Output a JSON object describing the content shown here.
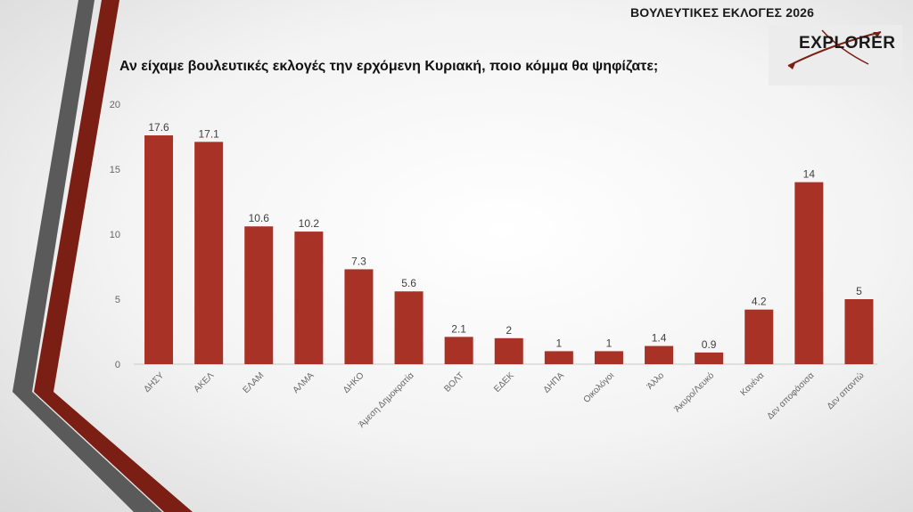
{
  "header": {
    "title": "ΒΟΥΛΕΥΤΙΚΕΣ ΕΚΛΟΓΕΣ 2026",
    "logo_text": "EXPLORER"
  },
  "colors": {
    "bar": "#a93226",
    "stripe_gray": "#5a5a5a",
    "stripe_red": "#7b1f14"
  },
  "chart_data": {
    "type": "bar",
    "title": "Αν είχαμε βουλευτικές εκλογές την ερχόμενη Κυριακή, ποιο κόμμα θα ψηφίζατε;",
    "categories": [
      "ΔΗΣΥ",
      "ΑΚΕΛ",
      "ΕΛΑΜ",
      "ΑΛΜΑ",
      "ΔΗΚΟ",
      "Άμεση Δημοκρατία",
      "ΒΟΛΤ",
      "ΕΔΕΚ",
      "ΔΗΠΑ",
      "Οικολόγοι",
      "Άλλο",
      "Άκυρο/Λευκό",
      "Κανένα",
      "Δεν αποφάσισα",
      "Δεν απαντώ"
    ],
    "values": [
      17.6,
      17.1,
      10.6,
      10.2,
      7.3,
      5.6,
      2.1,
      2,
      1,
      1,
      1.4,
      0.9,
      4.2,
      14,
      5
    ],
    "value_labels": [
      "17.6",
      "17.1",
      "10.6",
      "10.2",
      "7.3",
      "5.6",
      "2.1",
      "2",
      "1",
      "1",
      "1.4",
      "0.9",
      "4.2",
      "14",
      "5"
    ],
    "yticks": [
      "0",
      "5",
      "10",
      "15",
      "20"
    ],
    "ylim": [
      0,
      20
    ],
    "grid": false,
    "legend": "none"
  }
}
